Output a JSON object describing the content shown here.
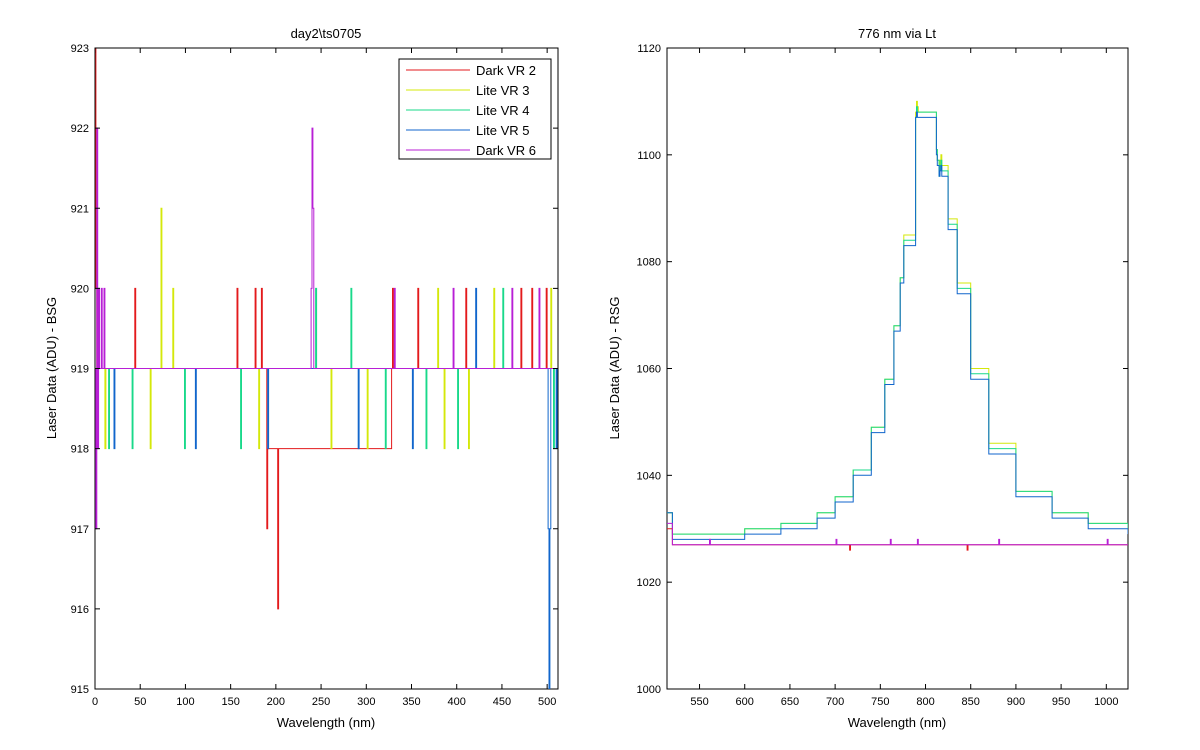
{
  "chart_data": [
    {
      "type": "line",
      "title": "day2\\ts0705",
      "xlabel": "Wavelength (nm)",
      "ylabel": "Laser Data (ADU) - BSG",
      "xlim": [
        0,
        512
      ],
      "ylim": [
        915,
        923
      ],
      "xticks": [
        0,
        50,
        100,
        150,
        200,
        250,
        300,
        350,
        400,
        450,
        500
      ],
      "yticks": [
        915,
        916,
        917,
        918,
        919,
        920,
        921,
        922,
        923
      ],
      "grid": false,
      "legend_position": "top-right",
      "series": [
        {
          "name": "Dark VR 2",
          "color": "#e31a1c",
          "x": [
            0,
            1,
            2,
            3,
            4,
            43,
            44,
            45,
            156,
            157,
            158,
            176,
            177,
            178,
            183,
            184,
            185,
            189,
            190,
            191,
            201,
            202,
            203,
            328,
            329,
            330,
            356,
            357,
            358,
            409,
            410,
            411,
            470,
            471,
            472,
            482,
            483,
            484,
            498,
            499,
            500,
            512
          ],
          "y": [
            923,
            920,
            919,
            919,
            919,
            919,
            920,
            919,
            919,
            920,
            919,
            919,
            920,
            919,
            919,
            920,
            919,
            919,
            917,
            918,
            918,
            916,
            918,
            919,
            920,
            919,
            919,
            920,
            919,
            919,
            920,
            919,
            919,
            920,
            919,
            919,
            920,
            919,
            919,
            920,
            919,
            919
          ]
        },
        {
          "name": "Lite VR 3",
          "color": "#d4e80a",
          "x": [
            0,
            10,
            11,
            12,
            60,
            61,
            62,
            72,
            73,
            74,
            85,
            86,
            87,
            180,
            181,
            182,
            260,
            261,
            262,
            300,
            301,
            302,
            378,
            379,
            380,
            385,
            386,
            387,
            412,
            413,
            414,
            440,
            441,
            442,
            503,
            504,
            505,
            512
          ],
          "y": [
            919,
            919,
            918,
            919,
            919,
            918,
            919,
            919,
            921,
            919,
            919,
            920,
            919,
            919,
            918,
            919,
            919,
            918,
            919,
            919,
            918,
            919,
            919,
            920,
            919,
            919,
            918,
            919,
            919,
            918,
            919,
            919,
            920,
            919,
            919,
            920,
            919,
            919
          ]
        },
        {
          "name": "Lite VR 4",
          "color": "#19d98a",
          "x": [
            0,
            14,
            15,
            16,
            40,
            41,
            42,
            98,
            99,
            100,
            160,
            161,
            162,
            243,
            244,
            245,
            282,
            283,
            284,
            320,
            321,
            322,
            365,
            366,
            367,
            400,
            401,
            402,
            450,
            451,
            452,
            506,
            507,
            508,
            512
          ],
          "y": [
            919,
            919,
            918,
            919,
            919,
            918,
            919,
            919,
            918,
            919,
            919,
            918,
            919,
            919,
            920,
            919,
            919,
            920,
            919,
            919,
            918,
            919,
            919,
            918,
            919,
            919,
            918,
            919,
            919,
            920,
            919,
            919,
            918,
            919,
            919
          ]
        },
        {
          "name": "Lite VR 5",
          "color": "#1166cc",
          "x": [
            0,
            20,
            21,
            22,
            110,
            111,
            112,
            190,
            191,
            192,
            290,
            291,
            292,
            350,
            351,
            352,
            420,
            421,
            422,
            500,
            501,
            502,
            503,
            504,
            505,
            510,
            511,
            512
          ],
          "y": [
            919,
            919,
            918,
            919,
            919,
            918,
            919,
            919,
            918,
            919,
            919,
            918,
            919,
            919,
            918,
            919,
            919,
            920,
            919,
            919,
            917,
            915,
            917,
            919,
            919,
            918,
            919,
            919
          ]
        },
        {
          "name": "Dark VR 6",
          "color": "#b81fd6",
          "x": [
            0,
            1,
            2,
            3,
            4,
            5,
            6,
            7,
            8,
            9,
            10,
            11,
            238,
            239,
            240,
            241,
            242,
            330,
            331,
            332,
            395,
            396,
            397,
            460,
            461,
            462,
            490,
            491,
            492,
            512
          ],
          "y": [
            919,
            917,
            922,
            918,
            920,
            919,
            919,
            920,
            919,
            919,
            920,
            919,
            919,
            920,
            922,
            921,
            919,
            919,
            920,
            919,
            919,
            920,
            919,
            919,
            920,
            919,
            919,
            920,
            919,
            919
          ]
        }
      ]
    },
    {
      "type": "line",
      "title": "776 nm via Lt",
      "xlabel": "Wavelength (nm)",
      "ylabel": "Laser Data (ADU) - RSG",
      "xlim": [
        514,
        1024
      ],
      "ylim": [
        1000,
        1120
      ],
      "xticks": [
        550,
        600,
        650,
        700,
        750,
        800,
        850,
        900,
        950,
        1000
      ],
      "yticks": [
        1000,
        1020,
        1040,
        1060,
        1080,
        1100,
        1120
      ],
      "grid": false,
      "series": [
        {
          "color": "#d4e80a",
          "x": [
            514,
            520,
            560,
            600,
            640,
            680,
            700,
            720,
            740,
            755,
            765,
            772,
            776,
            789,
            790,
            791,
            792,
            812,
            813,
            815,
            816,
            817,
            818,
            825,
            835,
            850,
            870,
            900,
            940,
            980,
            1024
          ],
          "y": [
            1033,
            1029,
            1029,
            1030,
            1031,
            1033,
            1036,
            1041,
            1049,
            1058,
            1068,
            1077,
            1085,
            1108,
            1110,
            1109,
            1108,
            1101,
            1099,
            1097,
            1099,
            1100,
            1098,
            1088,
            1076,
            1060,
            1046,
            1037,
            1033,
            1031,
            1030
          ]
        },
        {
          "color": "#19d98a",
          "x": [
            514,
            520,
            560,
            600,
            640,
            680,
            700,
            720,
            740,
            755,
            765,
            772,
            776,
            789,
            790,
            791,
            792,
            812,
            813,
            815,
            816,
            817,
            818,
            825,
            835,
            850,
            870,
            900,
            940,
            980,
            1024
          ],
          "y": [
            1033,
            1029,
            1029,
            1030,
            1031,
            1033,
            1036,
            1041,
            1049,
            1058,
            1068,
            1077,
            1084,
            1107,
            1109,
            1108,
            1108,
            1101,
            1099,
            1096,
            1098,
            1099,
            1097,
            1087,
            1075,
            1059,
            1045,
            1037,
            1033,
            1031,
            1030
          ]
        },
        {
          "color": "#1166cc",
          "x": [
            514,
            520,
            560,
            600,
            640,
            680,
            700,
            720,
            740,
            755,
            765,
            772,
            776,
            789,
            790,
            791,
            792,
            812,
            813,
            815,
            816,
            817,
            818,
            825,
            835,
            850,
            870,
            900,
            940,
            980,
            1024
          ],
          "y": [
            1033,
            1028,
            1028,
            1029,
            1030,
            1032,
            1035,
            1040,
            1048,
            1057,
            1067,
            1076,
            1083,
            1107,
            1108,
            1107,
            1107,
            1100,
            1098,
            1096,
            1097,
            1098,
            1096,
            1086,
            1074,
            1058,
            1044,
            1036,
            1032,
            1030,
            1029
          ]
        },
        {
          "color": "#e31a1c",
          "x": [
            514,
            520,
            600,
            715,
            716,
            717,
            845,
            846,
            847,
            1024
          ],
          "y": [
            1030,
            1027,
            1027,
            1027,
            1026,
            1027,
            1027,
            1026,
            1027,
            1027
          ]
        },
        {
          "color": "#b81fd6",
          "x": [
            514,
            520,
            560,
            561,
            562,
            700,
            701,
            702,
            760,
            761,
            762,
            790,
            791,
            792,
            880,
            881,
            882,
            1000,
            1001,
            1002,
            1024
          ],
          "y": [
            1031,
            1027,
            1027,
            1028,
            1027,
            1027,
            1028,
            1027,
            1027,
            1028,
            1027,
            1027,
            1028,
            1027,
            1027,
            1028,
            1027,
            1027,
            1028,
            1027,
            1027
          ]
        }
      ]
    }
  ]
}
